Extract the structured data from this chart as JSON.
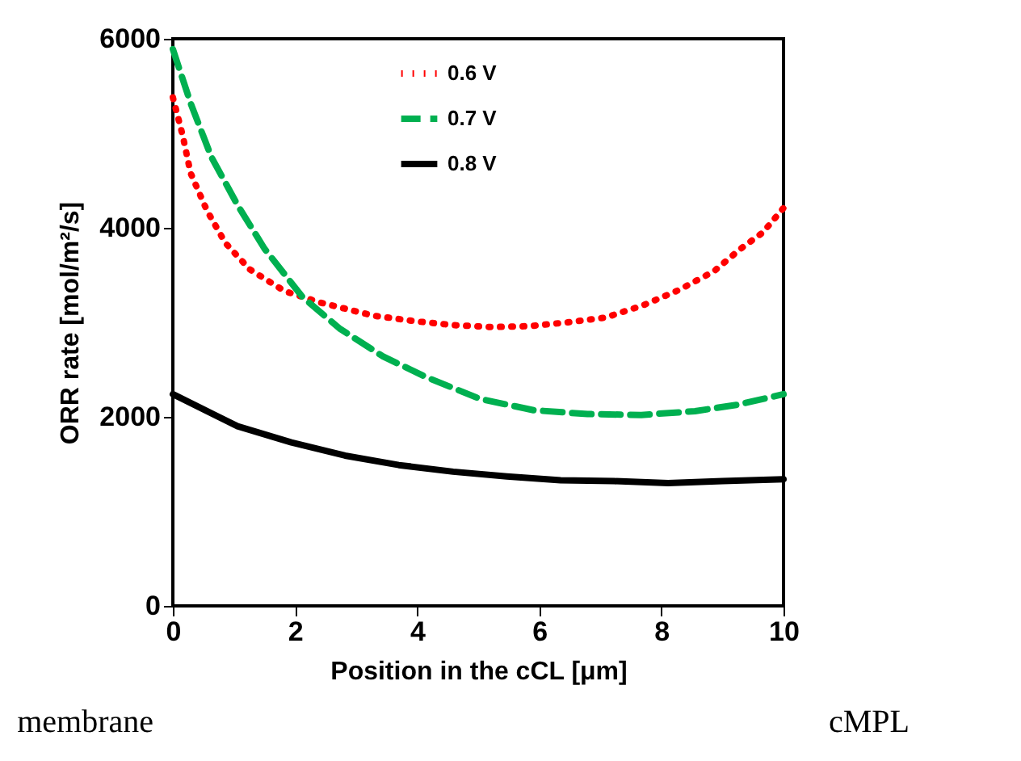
{
  "chart_data": {
    "type": "line",
    "xlabel": "Position in the cCL [μm]",
    "ylabel": "ORR rate [mol/m²/s]",
    "xlim": [
      0,
      10
    ],
    "xticks": [
      0,
      2,
      4,
      6,
      8,
      10
    ],
    "ylim": [
      0,
      6000
    ],
    "yticks": [
      0,
      2000,
      4000,
      6000
    ],
    "grid": false,
    "legend": "top",
    "annotations": [
      "membrane",
      "cMPL"
    ],
    "series": [
      {
        "name": "0.6 V",
        "color": "#ff0000",
        "line_style": "dotted",
        "x": [
          0,
          0.16,
          0.29,
          0.56,
          0.86,
          1.26,
          1.83,
          2.41,
          3.29,
          3.99,
          4.61,
          5.23,
          5.85,
          6.46,
          7.08,
          7.7,
          8.28,
          8.86,
          9.3,
          9.66,
          10
        ],
        "values": [
          5380,
          4980,
          4580,
          4180,
          3840,
          3560,
          3330,
          3210,
          3070,
          3010,
          2970,
          2950,
          2960,
          3000,
          3050,
          3180,
          3340,
          3540,
          3780,
          3950,
          4210
        ]
      },
      {
        "name": "0.7 V",
        "color": "#00b050",
        "line_style": "dashed",
        "x": [
          0,
          0.29,
          0.63,
          1.06,
          1.5,
          2.12,
          2.74,
          3.44,
          4.15,
          5.03,
          5.91,
          6.79,
          7.67,
          8.55,
          9.26,
          10
        ],
        "values": [
          5890,
          5320,
          4750,
          4240,
          3780,
          3270,
          2930,
          2640,
          2420,
          2190,
          2070,
          2030,
          2020,
          2060,
          2130,
          2240
        ]
      },
      {
        "name": "0.8 V",
        "color": "#000000",
        "line_style": "solid",
        "x": [
          0,
          1.06,
          1.94,
          2.82,
          3.7,
          4.59,
          5.47,
          6.35,
          7.23,
          8.11,
          9.0,
          10
        ],
        "values": [
          2240,
          1900,
          1730,
          1590,
          1490,
          1420,
          1370,
          1330,
          1320,
          1300,
          1320,
          1340
        ]
      }
    ]
  }
}
